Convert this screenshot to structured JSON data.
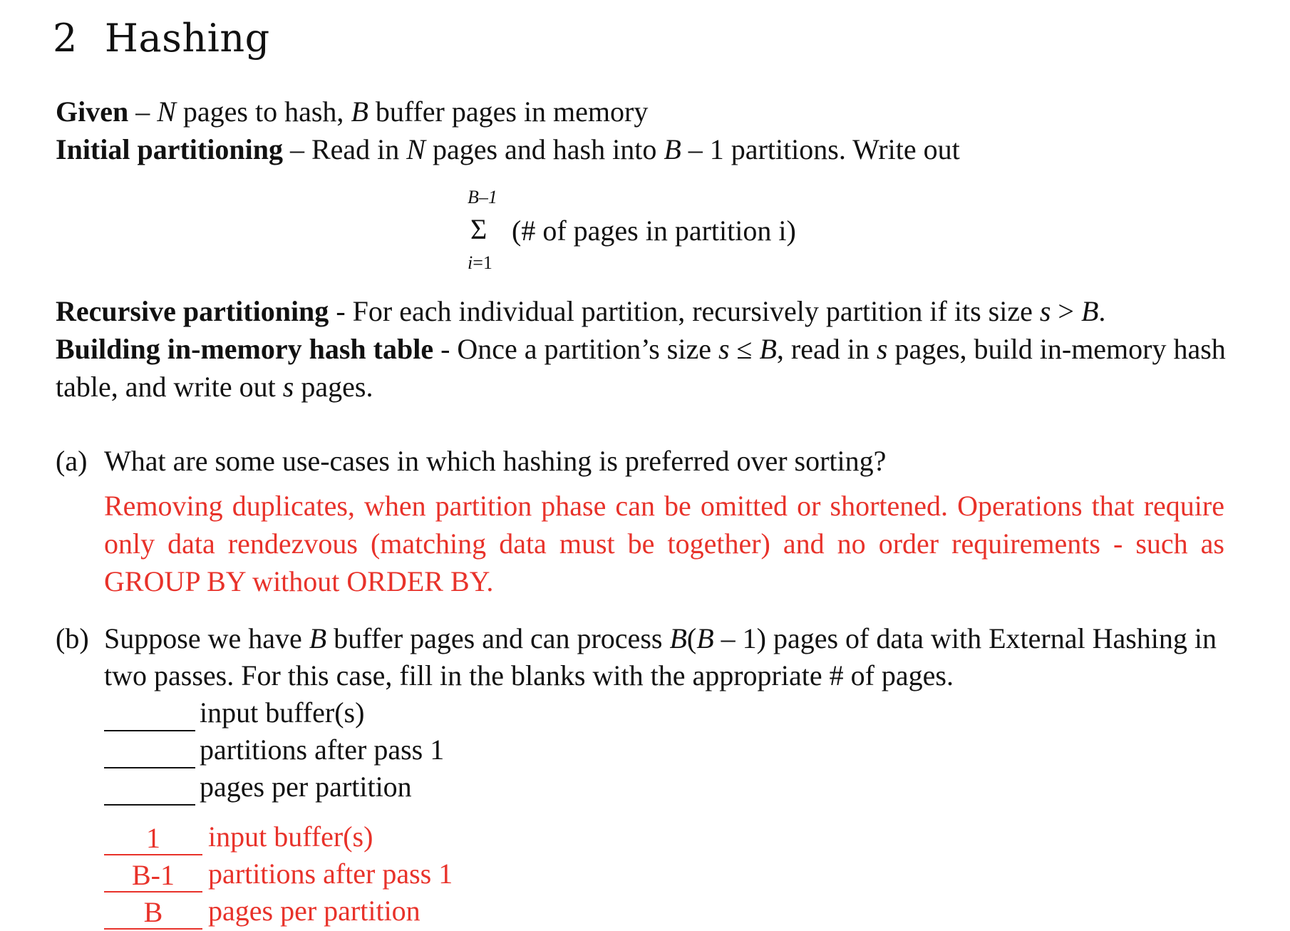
{
  "section": {
    "number": "2",
    "title": "Hashing"
  },
  "definitions": [
    {
      "term": "Given",
      "sep": " – ",
      "text_parts": [
        "",
        "N",
        " pages to hash, ",
        "B",
        " buffer pages in memory"
      ]
    },
    {
      "term": "Initial partitioning",
      "sep": " – ",
      "text_parts": [
        "Read in ",
        "N",
        " pages and hash into ",
        "B",
        " – 1 partitions. Write out"
      ]
    }
  ],
  "formula": {
    "upper": "B–1",
    "sigma": "Σ",
    "lower_var": "i",
    "lower_rest": "=1",
    "body": "(# of pages in partition i)"
  },
  "definitions2": [
    {
      "term": "Recursive partitioning",
      "sep": " - ",
      "text_parts": [
        "For each individual partition, recursively partition if its size ",
        "s",
        " > ",
        "B",
        "."
      ]
    },
    {
      "term": "Building in-memory hash table",
      "sep": " - ",
      "text_parts": [
        "Once a partition’s size ",
        "s",
        " ≤ ",
        "B",
        ", read in ",
        "s",
        " pages, build in-memory hash table, and write out ",
        "s",
        " pages."
      ]
    }
  ],
  "question_a": {
    "label": "(a)",
    "text": "What are some use-cases in which hashing is preferred over sorting?",
    "answer": "Removing duplicates, when partition phase can be omitted or shortened. Operations that require only data rendezvous (matching data must be together) and no order requirements - such as GROUP BY without ORDER BY."
  },
  "question_b": {
    "label": "(b)",
    "text_parts": [
      "Suppose we have ",
      "B",
      " buffer pages and can process ",
      "B",
      "(",
      "B",
      " – 1) pages of data with External Hashing in two passes. For this case, fill in the blanks with the appropriate # of pages."
    ],
    "blanks": [
      "input buffer(s)",
      "partitions after pass 1",
      "pages per partition"
    ],
    "answers": [
      {
        "value": "1",
        "label": "input buffer(s)"
      },
      {
        "value": "B-1",
        "label": "partitions after pass 1"
      },
      {
        "value": "B",
        "label": "pages per partition"
      }
    ],
    "answer_color": "#e8322a"
  }
}
